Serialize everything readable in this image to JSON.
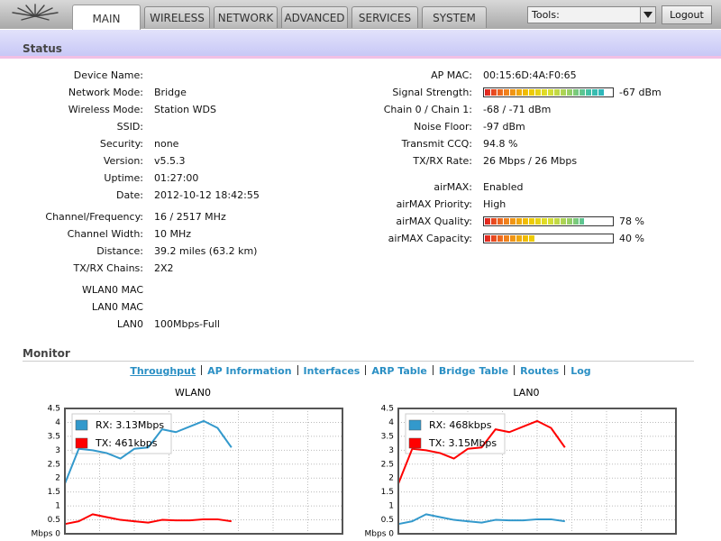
{
  "nav": {
    "tabs": [
      "MAIN",
      "WIRELESS",
      "NETWORK",
      "ADVANCED",
      "SERVICES",
      "SYSTEM"
    ],
    "tools_label": "Tools:",
    "logout": "Logout"
  },
  "status": {
    "title": "Status",
    "left": [
      {
        "label": "Device Name:"
      },
      {
        "label": "Network Mode:",
        "value": "Bridge"
      },
      {
        "label": "Wireless Mode:",
        "value": "Station WDS"
      },
      {
        "label": "SSID:"
      },
      {
        "label": "Security:",
        "value": "none"
      },
      {
        "label": "Version:",
        "value": "v5.5.3"
      },
      {
        "label": "Uptime:",
        "value": "01:27:00"
      },
      {
        "label": "Date:",
        "value": "2012-10-12 18:42:55"
      },
      {
        "label": "Channel/Frequency:",
        "value": "16 / 2517 MHz"
      },
      {
        "label": "Channel Width:",
        "value": "10 MHz"
      },
      {
        "label": "Distance:",
        "value": "39.2 miles (63.2 km)"
      },
      {
        "label": "TX/RX Chains:",
        "value": "2X2"
      },
      {
        "label": "WLAN0 MAC"
      },
      {
        "label": "LAN0 MAC"
      },
      {
        "label": "LAN0",
        "value": "100Mbps-Full"
      }
    ],
    "right": [
      {
        "label": "AP MAC:",
        "value": "00:15:6D:4A:F0:65"
      },
      {
        "label": "Signal Strength:",
        "meter": {
          "value": -67,
          "label": "-67 dBm",
          "lim": [
            -100,
            -65
          ]
        }
      },
      {
        "label": "Chain 0 / Chain 1:",
        "value": "-68 / -71 dBm"
      },
      {
        "label": "Noise Floor:",
        "value": "-97 dBm"
      },
      {
        "label": "Transmit CCQ:",
        "value": "94.8 %"
      },
      {
        "label": "TX/RX Rate:",
        "value": "26 Mbps / 26 Mbps"
      },
      {
        "label": "airMAX:",
        "value": "Enabled"
      },
      {
        "label": "airMAX Priority:",
        "value": "High"
      },
      {
        "label": "airMAX Quality:",
        "meter": {
          "value": 78,
          "label": "78 %",
          "lim": [
            0,
            100
          ]
        }
      },
      {
        "label": "airMAX Capacity:",
        "meter": {
          "value": 40,
          "label": "40 %",
          "lim": [
            0,
            100
          ]
        }
      }
    ]
  },
  "monitor": {
    "title": "Monitor",
    "links": [
      "Throughput",
      "AP Information",
      "Interfaces",
      "ARP Table",
      "Bridge Table",
      "Routes",
      "Log"
    ]
  },
  "chart_data": [
    {
      "type": "line",
      "title": "WLAN0",
      "x": [
        0,
        1,
        2,
        3,
        4,
        5,
        6,
        7,
        8,
        9,
        10,
        11,
        12
      ],
      "xlim": [
        0,
        20
      ],
      "ylim": [
        0,
        4.5
      ],
      "yticks": [
        {
          "value": 0,
          "label": "Mbps 0"
        },
        0.5,
        1,
        1.5,
        2,
        2.5,
        3,
        3.5,
        4,
        4.5
      ],
      "grid": true,
      "series": [
        {
          "name": "RX: 3.13Mbps",
          "color": "#3399cc",
          "values": [
            1.8,
            3.05,
            3.0,
            2.9,
            2.7,
            3.05,
            3.1,
            3.75,
            3.65,
            3.85,
            4.05,
            3.8,
            3.1
          ]
        },
        {
          "name": "TX: 461kbps",
          "color": "#ff0000",
          "values": [
            0.35,
            0.45,
            0.7,
            0.6,
            0.5,
            0.45,
            0.4,
            0.5,
            0.48,
            0.48,
            0.52,
            0.52,
            0.45
          ]
        }
      ]
    },
    {
      "type": "line",
      "title": "LAN0",
      "x": [
        0,
        1,
        2,
        3,
        4,
        5,
        6,
        7,
        8,
        9,
        10,
        11,
        12
      ],
      "xlim": [
        0,
        20
      ],
      "ylim": [
        0,
        4.5
      ],
      "yticks": [
        {
          "value": 0,
          "label": "Mbps 0"
        },
        0.5,
        1,
        1.5,
        2,
        2.5,
        3,
        3.5,
        4,
        4.5
      ],
      "grid": true,
      "series": [
        {
          "name": "RX: 468kbps",
          "color": "#3399cc",
          "values": [
            0.35,
            0.45,
            0.7,
            0.6,
            0.5,
            0.45,
            0.4,
            0.5,
            0.48,
            0.48,
            0.52,
            0.52,
            0.45
          ]
        },
        {
          "name": "TX: 3.15Mbps",
          "color": "#ff0000",
          "values": [
            1.8,
            3.05,
            3.0,
            2.9,
            2.7,
            3.05,
            3.1,
            3.75,
            3.65,
            3.85,
            4.05,
            3.8,
            3.1
          ]
        }
      ]
    }
  ]
}
